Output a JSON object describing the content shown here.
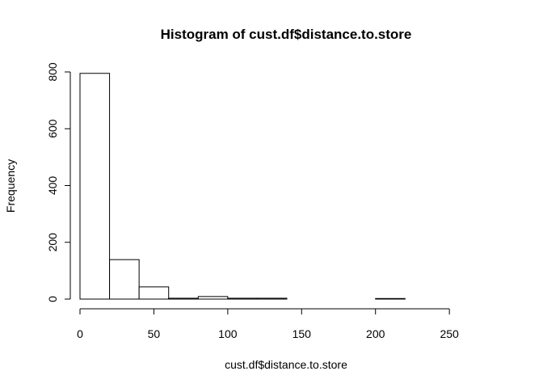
{
  "chart_data": {
    "type": "bar",
    "title": "Histogram of cust.df$distance.to.store",
    "xlabel": "cust.df$distance.to.store",
    "ylabel": "Frequency",
    "bin_width": 20,
    "x_ticks": [
      0,
      50,
      100,
      150,
      200,
      250
    ],
    "y_ticks": [
      0,
      200,
      400,
      600,
      800
    ],
    "xlim": [
      0,
      280
    ],
    "ylim": [
      0,
      800
    ],
    "bins": [
      {
        "start": 0,
        "end": 20,
        "count": 795
      },
      {
        "start": 20,
        "end": 40,
        "count": 139
      },
      {
        "start": 40,
        "end": 60,
        "count": 43
      },
      {
        "start": 60,
        "end": 80,
        "count": 3
      },
      {
        "start": 80,
        "end": 100,
        "count": 9
      },
      {
        "start": 100,
        "end": 120,
        "count": 3
      },
      {
        "start": 120,
        "end": 140,
        "count": 3
      },
      {
        "start": 140,
        "end": 160,
        "count": 0
      },
      {
        "start": 160,
        "end": 180,
        "count": 0
      },
      {
        "start": 180,
        "end": 200,
        "count": 0
      },
      {
        "start": 200,
        "end": 220,
        "count": 2
      },
      {
        "start": 220,
        "end": 240,
        "count": 0
      },
      {
        "start": 240,
        "end": 260,
        "count": 0
      },
      {
        "start": 260,
        "end": 280,
        "count": 0
      }
    ],
    "grid": false,
    "legend": "none"
  }
}
